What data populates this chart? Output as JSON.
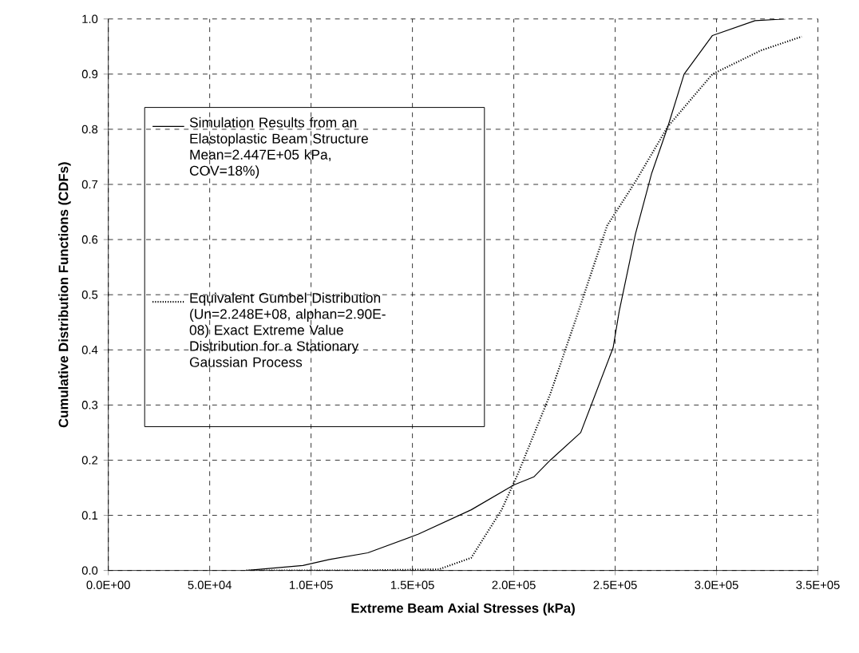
{
  "chart_data": {
    "type": "line",
    "xlabel": "Extreme Beam Axial Stresses (kPa)",
    "ylabel": "Cumulative Distribution Functions (CDFs)",
    "xlim": [
      0,
      350000
    ],
    "ylim": [
      0,
      1
    ],
    "xticks": [
      {
        "value": 0,
        "label": "0.0E+00"
      },
      {
        "value": 50000,
        "label": "5.0E+04"
      },
      {
        "value": 100000,
        "label": "1.0E+05"
      },
      {
        "value": 150000,
        "label": "1.5E+05"
      },
      {
        "value": 200000,
        "label": "2.0E+05"
      },
      {
        "value": 250000,
        "label": "2.5E+05"
      },
      {
        "value": 300000,
        "label": "3.0E+05"
      },
      {
        "value": 350000,
        "label": "3.5E+05"
      }
    ],
    "yticks": [
      {
        "value": 0,
        "label": "0.0"
      },
      {
        "value": 0.1,
        "label": "0.1"
      },
      {
        "value": 0.2,
        "label": "0.2"
      },
      {
        "value": 0.3,
        "label": "0.3"
      },
      {
        "value": 0.4,
        "label": "0.4"
      },
      {
        "value": 0.5,
        "label": "0.5"
      },
      {
        "value": 0.6,
        "label": "0.6"
      },
      {
        "value": 0.7,
        "label": "0.7"
      },
      {
        "value": 0.8,
        "label": "0.8"
      },
      {
        "value": 0.9,
        "label": "0.9"
      },
      {
        "value": 1.0,
        "label": "1.0"
      }
    ],
    "grid": true,
    "legend": "left",
    "marker": "none",
    "series": [
      {
        "name": "Simulation Results from an Elastoplastic Beam Structure Mean=2.447E+05 kPa, COV=18%)",
        "color": "#000000",
        "line_style": "solid",
        "x": [
          68000,
          96000,
          109000,
          128000,
          153000,
          179000,
          200000,
          210000,
          218000,
          233000,
          249000,
          252000,
          260000,
          268000,
          276000,
          284000,
          298000,
          319000,
          334000
        ],
        "values": [
          0,
          0.009,
          0.02,
          0.032,
          0.066,
          0.11,
          0.155,
          0.17,
          0.2,
          0.25,
          0.404,
          0.47,
          0.61,
          0.72,
          0.805,
          0.9,
          0.97,
          0.997,
          1.0
        ]
      },
      {
        "name": "Equivalent Gumbel Distribution (Un=2.248E+08, alphan=2.90E-08) Exact Extreme Value Distribution for a Stationary Gaussian Process",
        "color": "#000000",
        "line_style": "dotted",
        "x": [
          68000,
          120000,
          163000,
          179000,
          194000,
          202000,
          218000,
          231000,
          246000,
          260000,
          276000,
          298000,
          322000,
          342000
        ],
        "values": [
          0,
          0,
          0.002,
          0.023,
          0.11,
          0.175,
          0.32,
          0.46,
          0.625,
          0.705,
          0.805,
          0.9,
          0.943,
          0.968
        ]
      }
    ]
  }
}
